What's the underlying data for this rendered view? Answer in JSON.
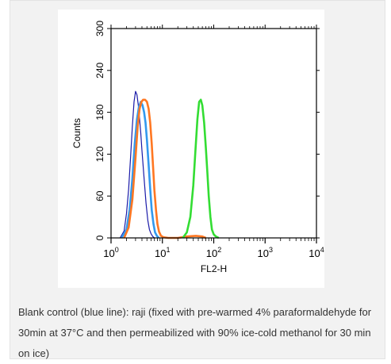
{
  "chart_data": {
    "type": "line",
    "xlabel": "FL2-H",
    "ylabel": "Counts",
    "xscale": "log",
    "xlim": [
      1,
      10000
    ],
    "ylim": [
      0,
      300
    ],
    "x_ticks": [
      {
        "base": "10",
        "exp": "0"
      },
      {
        "base": "10",
        "exp": "1"
      },
      {
        "base": "10",
        "exp": "2"
      },
      {
        "base": "10",
        "exp": "3"
      },
      {
        "base": "10",
        "exp": "4"
      }
    ],
    "y_ticks": [
      "0",
      "60",
      "120",
      "180",
      "240",
      "300"
    ],
    "y_tick_values": [
      0,
      60,
      120,
      180,
      240,
      300
    ],
    "grid": false,
    "legend": "none",
    "series": [
      {
        "color": "#1a1aa8",
        "x": [
          1.5,
          1.8,
          2.0,
          2.2,
          2.4,
          2.6,
          2.8,
          3.0,
          3.2,
          3.4,
          3.6,
          3.8,
          4.0,
          4.4,
          4.8,
          5.2,
          5.6,
          6.0,
          6.5,
          7.0
        ],
        "y": [
          0,
          10,
          35,
          70,
          115,
          160,
          195,
          210,
          205,
          190,
          170,
          150,
          125,
          85,
          50,
          25,
          12,
          6,
          2,
          0
        ]
      },
      {
        "color": "#3399ee",
        "x": [
          1.6,
          2.0,
          2.3,
          2.6,
          2.9,
          3.2,
          3.5,
          3.8,
          4.1,
          4.4,
          4.7,
          5.0,
          5.4,
          5.8,
          6.2,
          6.7,
          7.2,
          7.8,
          8.5
        ],
        "y": [
          0,
          12,
          40,
          85,
          135,
          170,
          188,
          195,
          190,
          180,
          165,
          140,
          105,
          70,
          40,
          20,
          8,
          3,
          0
        ]
      },
      {
        "color": "#ff7722",
        "x": [
          1.8,
          2.2,
          2.6,
          3.0,
          3.3,
          3.6,
          3.9,
          4.2,
          4.6,
          5.0,
          5.4,
          5.8,
          6.2,
          6.6,
          7.0,
          7.5,
          8.0,
          8.6,
          9.4,
          10.5,
          13,
          20,
          30,
          45,
          60,
          70
        ],
        "y": [
          0,
          15,
          55,
          115,
          160,
          185,
          195,
          198,
          198,
          195,
          185,
          165,
          135,
          100,
          68,
          40,
          20,
          9,
          3,
          1,
          0,
          0,
          2,
          3,
          2,
          0
        ]
      },
      {
        "color": "#33dd33",
        "x": [
          25,
          30,
          35,
          40,
          44,
          48,
          52,
          56,
          60,
          65,
          70,
          75,
          80,
          86,
          92,
          100,
          110,
          125
        ],
        "y": [
          0,
          8,
          30,
          75,
          125,
          170,
          195,
          198,
          190,
          165,
          130,
          95,
          60,
          30,
          12,
          5,
          2,
          0
        ]
      }
    ]
  },
  "caption": "Blank control (blue line): raji (fixed with pre-warmed 4% paraformaldehyde for 30min at 37°C and then permeabilized with 90% ice-cold methanol for 30 min on ice)"
}
